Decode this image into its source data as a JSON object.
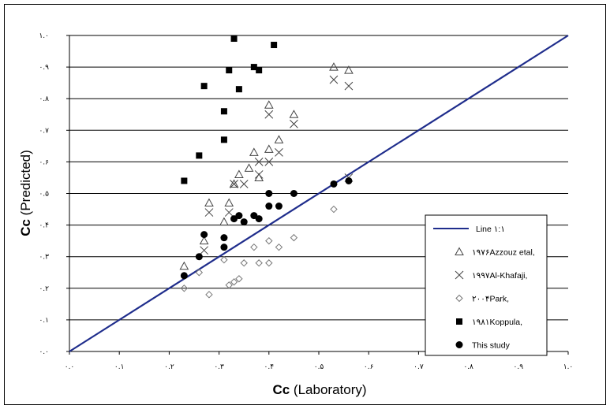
{
  "chart_data": {
    "type": "scatter",
    "xlabel_bold": "Cc",
    "xlabel_rest": " (Laboratory)",
    "ylabel_bold": "Cc",
    "ylabel_rest": " (Predicted)",
    "xlim": [
      0,
      1.0
    ],
    "ylim": [
      0,
      1.0
    ],
    "x_tick_labels": [
      "۰.۰",
      "۰.۱",
      "۰.۲",
      "۰.۳",
      "۰.۴",
      "۰.۵",
      "۰.۶",
      "۰.۷",
      "۰.۸",
      "۰.۹",
      "۱.۰"
    ],
    "y_tick_labels": [
      "۰.۰",
      "۰.۱",
      "۰.۲",
      "۰.۳",
      "۰.۴",
      "۰.۵",
      "۰.۶",
      "۰.۷",
      "۰.۸",
      "۰.۹",
      "۱.۰"
    ],
    "grid": "horizontal",
    "legend_position": "right",
    "line": {
      "name": "Line ۱:۱",
      "points": [
        [
          0,
          0
        ],
        [
          1,
          1
        ]
      ],
      "color": "#1f2d8c"
    },
    "series": [
      {
        "name": "۱۹۷۶Azzouz etal,",
        "marker": "triangle",
        "points": [
          [
            0.23,
            0.27
          ],
          [
            0.27,
            0.35
          ],
          [
            0.28,
            0.47
          ],
          [
            0.31,
            0.41
          ],
          [
            0.32,
            0.47
          ],
          [
            0.33,
            0.53
          ],
          [
            0.34,
            0.56
          ],
          [
            0.36,
            0.58
          ],
          [
            0.37,
            0.63
          ],
          [
            0.38,
            0.55
          ],
          [
            0.4,
            0.64
          ],
          [
            0.4,
            0.78
          ],
          [
            0.42,
            0.67
          ],
          [
            0.45,
            0.75
          ],
          [
            0.53,
            0.9
          ],
          [
            0.56,
            0.89
          ]
        ]
      },
      {
        "name": "۱۹۹۷Al-Khafaji,",
        "marker": "x",
        "points": [
          [
            0.27,
            0.32
          ],
          [
            0.28,
            0.44
          ],
          [
            0.32,
            0.44
          ],
          [
            0.33,
            0.53
          ],
          [
            0.35,
            0.53
          ],
          [
            0.38,
            0.56
          ],
          [
            0.38,
            0.6
          ],
          [
            0.4,
            0.6
          ],
          [
            0.4,
            0.75
          ],
          [
            0.42,
            0.63
          ],
          [
            0.45,
            0.72
          ],
          [
            0.53,
            0.86
          ],
          [
            0.56,
            0.84
          ],
          [
            0.56,
            0.55
          ]
        ]
      },
      {
        "name": "۲۰۰۴Park,",
        "marker": "diamond",
        "points": [
          [
            0.23,
            0.2
          ],
          [
            0.26,
            0.25
          ],
          [
            0.28,
            0.18
          ],
          [
            0.31,
            0.29
          ],
          [
            0.32,
            0.21
          ],
          [
            0.33,
            0.22
          ],
          [
            0.34,
            0.23
          ],
          [
            0.35,
            0.28
          ],
          [
            0.37,
            0.33
          ],
          [
            0.38,
            0.28
          ],
          [
            0.4,
            0.28
          ],
          [
            0.4,
            0.35
          ],
          [
            0.42,
            0.33
          ],
          [
            0.45,
            0.36
          ],
          [
            0.53,
            0.45
          ]
        ]
      },
      {
        "name": "۱۹۸۱Koppula,",
        "marker": "square",
        "points": [
          [
            0.23,
            0.54
          ],
          [
            0.26,
            0.62
          ],
          [
            0.27,
            0.84
          ],
          [
            0.31,
            0.76
          ],
          [
            0.32,
            0.89
          ],
          [
            0.33,
            0.99
          ],
          [
            0.34,
            0.83
          ],
          [
            0.37,
            0.9
          ],
          [
            0.38,
            0.89
          ],
          [
            0.41,
            0.97
          ],
          [
            0.31,
            0.67
          ]
        ]
      },
      {
        "name": "This study",
        "marker": "circle",
        "points": [
          [
            0.23,
            0.24
          ],
          [
            0.26,
            0.3
          ],
          [
            0.27,
            0.37
          ],
          [
            0.31,
            0.33
          ],
          [
            0.31,
            0.36
          ],
          [
            0.33,
            0.42
          ],
          [
            0.34,
            0.43
          ],
          [
            0.35,
            0.41
          ],
          [
            0.37,
            0.43
          ],
          [
            0.38,
            0.42
          ],
          [
            0.4,
            0.46
          ],
          [
            0.4,
            0.5
          ],
          [
            0.42,
            0.46
          ],
          [
            0.45,
            0.5
          ],
          [
            0.53,
            0.53
          ],
          [
            0.56,
            0.54
          ]
        ]
      }
    ]
  }
}
